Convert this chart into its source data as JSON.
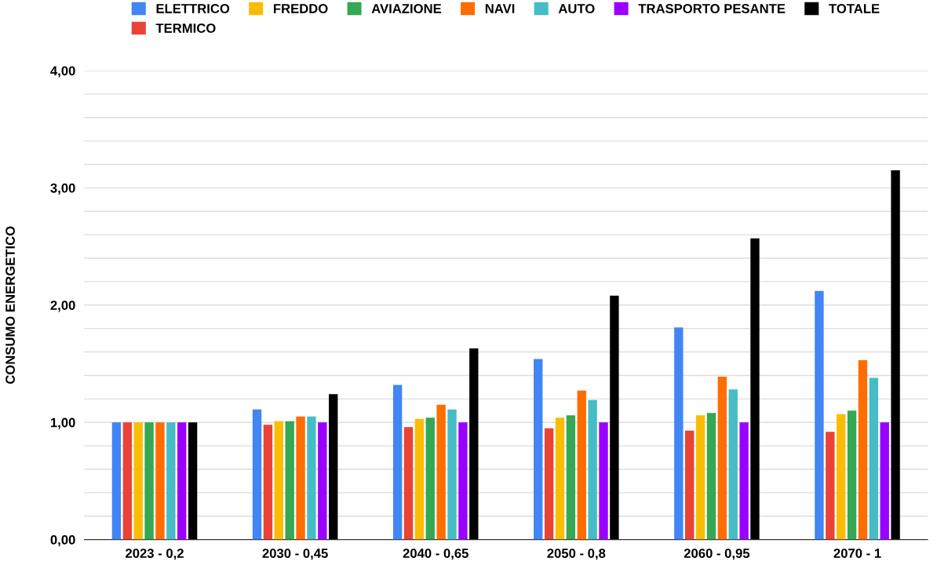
{
  "chart_data": {
    "type": "bar",
    "ylabel": "CONSUMO ENERGETICO",
    "categories": [
      "2023 - 0,2",
      "2030 - 0,45",
      "2040 - 0,65",
      "2050 - 0,8",
      "2060 - 0,95",
      "2070 - 1"
    ],
    "series": [
      {
        "name": "ELETTRICO",
        "color": "#4285f4",
        "values": [
          1.0,
          1.11,
          1.32,
          1.54,
          1.81,
          2.12
        ]
      },
      {
        "name": "TERMICO",
        "color": "#ea4335",
        "values": [
          1.0,
          0.98,
          0.96,
          0.95,
          0.93,
          0.92
        ]
      },
      {
        "name": "FREDDO",
        "color": "#fbbc04",
        "values": [
          1.0,
          1.01,
          1.03,
          1.04,
          1.06,
          1.07
        ]
      },
      {
        "name": "AVIAZIONE",
        "color": "#34a853",
        "values": [
          1.0,
          1.01,
          1.04,
          1.06,
          1.08,
          1.1
        ]
      },
      {
        "name": "NAVI",
        "color": "#ff6d01",
        "values": [
          1.0,
          1.05,
          1.15,
          1.27,
          1.39,
          1.53
        ]
      },
      {
        "name": "AUTO",
        "color": "#46bdc6",
        "values": [
          1.0,
          1.05,
          1.11,
          1.19,
          1.28,
          1.38
        ]
      },
      {
        "name": "TRASPORTO PESANTE",
        "color": "#9900ff",
        "values": [
          1.0,
          1.0,
          1.0,
          1.0,
          1.0,
          1.0
        ]
      },
      {
        "name": "TOTALE",
        "color": "#000000",
        "values": [
          1.0,
          1.24,
          1.63,
          2.08,
          2.57,
          3.15
        ]
      }
    ],
    "ylim": [
      0,
      4
    ],
    "yticks": [
      {
        "value": 0,
        "label": "0,00"
      },
      {
        "value": 0.2,
        "label": null
      },
      {
        "value": 0.4,
        "label": null
      },
      {
        "value": 0.6,
        "label": null
      },
      {
        "value": 0.8,
        "label": null
      },
      {
        "value": 1,
        "label": "1,00"
      },
      {
        "value": 1.2,
        "label": null
      },
      {
        "value": 1.4,
        "label": null
      },
      {
        "value": 1.6,
        "label": null
      },
      {
        "value": 1.8,
        "label": null
      },
      {
        "value": 2,
        "label": "2,00"
      },
      {
        "value": 2.2,
        "label": null
      },
      {
        "value": 2.4,
        "label": null
      },
      {
        "value": 2.6,
        "label": null
      },
      {
        "value": 2.8,
        "label": null
      },
      {
        "value": 3,
        "label": "3,00"
      },
      {
        "value": 3.2,
        "label": null
      },
      {
        "value": 3.4,
        "label": null
      },
      {
        "value": 3.6,
        "label": null
      },
      {
        "value": 3.8,
        "label": null
      },
      {
        "value": 4,
        "label": "4,00"
      }
    ],
    "grid": "y",
    "legend": "top"
  }
}
